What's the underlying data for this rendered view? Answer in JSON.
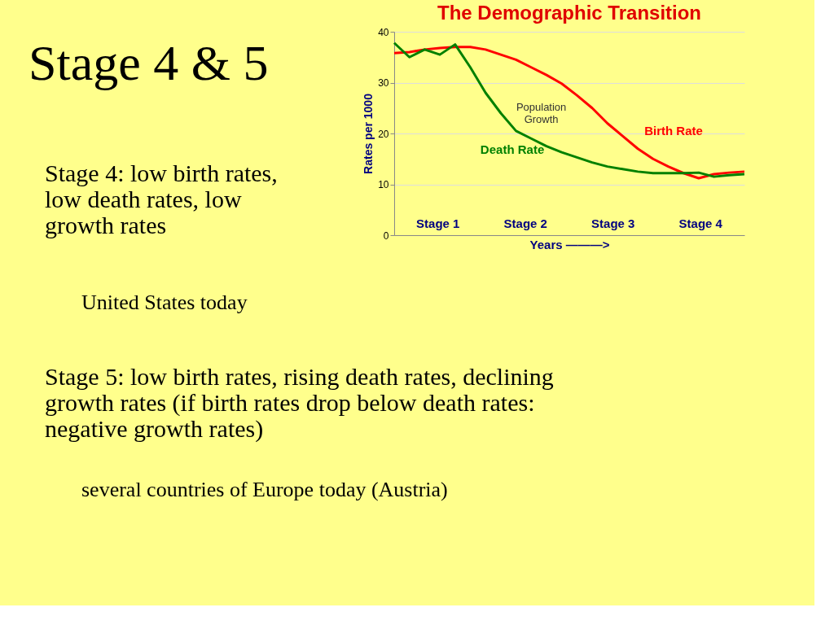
{
  "chart_data": {
    "type": "line",
    "title": "The Demographic Transition",
    "xlabel": "Years ———>",
    "ylabel": "Rates per 1000",
    "categories": [
      null,
      null,
      null,
      null,
      null,
      null,
      null,
      null,
      null,
      null,
      null,
      null,
      null,
      null,
      null,
      null,
      null,
      null,
      null,
      null,
      null,
      null,
      null,
      null
    ],
    "series": [
      {
        "name": "Birth Rate",
        "color": "#ff0000",
        "values": [
          35.8,
          36,
          36.5,
          36.8,
          37,
          37,
          36.5,
          35.5,
          34.5,
          33,
          31.5,
          29.8,
          27.5,
          25,
          22,
          19.5,
          17,
          15,
          13.5,
          12.2,
          11.2,
          12,
          12.3,
          12.5
        ]
      },
      {
        "name": "Death Rate",
        "color": "#008000",
        "values": [
          37.8,
          35,
          36.5,
          35.5,
          37.5,
          33,
          28,
          24,
          20.5,
          19,
          17.5,
          16.3,
          15.3,
          14.3,
          13.5,
          13,
          12.5,
          12.2,
          12.2,
          12.2,
          12.3,
          11.5,
          11.8,
          12
        ]
      }
    ],
    "ylim": [
      0,
      40
    ],
    "yticks": [
      0,
      10,
      20,
      30,
      40
    ],
    "grid": "y",
    "legend": false,
    "tick_labels": "y",
    "annotations": [
      "Stage 4 & 5",
      "Stage 4: low birth rates, low death rates, low growth rates",
      "United States today",
      "Stage 5: low birth rates, rising death rates, declining growth rates (if birth rates drop below death rates: negative growth rates)",
      "several countries of Europe today (Austria)",
      "Population Growth",
      "Stage 1",
      "Stage 2",
      "Stage 3",
      "Stage 4"
    ]
  }
}
